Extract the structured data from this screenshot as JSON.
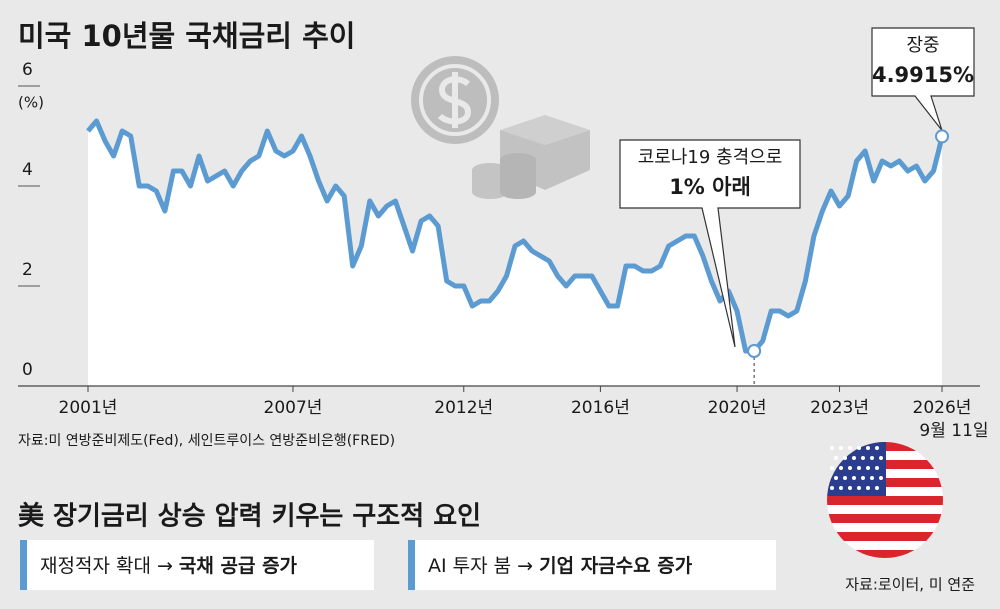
{
  "chart_data": {
    "type": "line",
    "title": "미국 10년물 국채금리 추이",
    "y_unit": "(%)",
    "xlim": [
      2001,
      2026
    ],
    "ylim": [
      0,
      6
    ],
    "yticks": [
      0,
      2,
      4,
      6
    ],
    "xticks": [
      {
        "value": 2001,
        "label": "2001년"
      },
      {
        "value": 2007,
        "label": "2007년"
      },
      {
        "value": 2012,
        "label": "2012년"
      },
      {
        "value": 2016,
        "label": "2016년"
      },
      {
        "value": 2020,
        "label": "2020년"
      },
      {
        "value": 2023,
        "label": "2023년"
      },
      {
        "value": 2026,
        "label": "2026년"
      }
    ],
    "last_date": "9월 11일",
    "x": [
      2001,
      2001.25,
      2001.5,
      2001.75,
      2002,
      2002.25,
      2002.5,
      2002.75,
      2003,
      2003.25,
      2003.5,
      2003.75,
      2004,
      2004.25,
      2004.5,
      2004.75,
      2005,
      2005.25,
      2005.5,
      2005.75,
      2006,
      2006.25,
      2006.5,
      2006.75,
      2007,
      2007.25,
      2007.5,
      2007.75,
      2008,
      2008.25,
      2008.5,
      2008.75,
      2009,
      2009.25,
      2009.5,
      2009.75,
      2010,
      2010.25,
      2010.5,
      2010.75,
      2011,
      2011.25,
      2011.5,
      2011.75,
      2012,
      2012.25,
      2012.5,
      2012.75,
      2013,
      2013.25,
      2013.5,
      2013.75,
      2014,
      2014.25,
      2014.5,
      2014.75,
      2015,
      2015.25,
      2015.5,
      2015.75,
      2016,
      2016.25,
      2016.5,
      2016.75,
      2017,
      2017.25,
      2017.5,
      2017.75,
      2018,
      2018.25,
      2018.5,
      2018.75,
      2019,
      2019.25,
      2019.5,
      2019.75,
      2020,
      2020.25,
      2020.5,
      2020.75,
      2021,
      2021.25,
      2021.5,
      2021.75,
      2022,
      2022.25,
      2022.5,
      2022.75,
      2023,
      2023.25,
      2023.5,
      2023.75,
      2024,
      2024.25,
      2024.5,
      2024.75,
      2025,
      2025.25,
      2025.5,
      2025.75,
      2025.9,
      2026
    ],
    "series": [
      {
        "name": "미국 10년물 국채금리",
        "color": "#5b9bd1",
        "values": [
          5.1,
          5.3,
          4.9,
          4.6,
          5.1,
          5.0,
          4.0,
          4.0,
          3.9,
          3.5,
          4.3,
          4.3,
          4.0,
          4.6,
          4.1,
          4.2,
          4.3,
          4.0,
          4.3,
          4.5,
          4.6,
          5.1,
          4.7,
          4.6,
          4.7,
          5.0,
          4.6,
          4.1,
          3.7,
          4.0,
          3.8,
          2.4,
          2.8,
          3.7,
          3.4,
          3.6,
          3.7,
          3.2,
          2.7,
          3.3,
          3.4,
          3.2,
          2.1,
          2.0,
          2.0,
          1.6,
          1.7,
          1.7,
          1.9,
          2.2,
          2.8,
          2.9,
          2.7,
          2.6,
          2.5,
          2.2,
          2.0,
          2.2,
          2.2,
          2.2,
          1.9,
          1.6,
          1.6,
          2.4,
          2.4,
          2.3,
          2.3,
          2.4,
          2.8,
          2.9,
          3.0,
          3.0,
          2.6,
          2.1,
          1.7,
          1.9,
          1.5,
          0.7,
          0.7,
          0.9,
          1.5,
          1.5,
          1.4,
          1.5,
          2.1,
          3.0,
          3.5,
          3.9,
          3.6,
          3.8,
          4.5,
          4.7,
          4.1,
          4.5,
          4.4,
          4.5,
          4.3,
          4.4,
          4.1,
          4.3,
          4.7,
          4.9915
        ]
      }
    ],
    "annotations": [
      {
        "lines": [
          "코로나19 충격으로",
          "1% 아래"
        ],
        "point": 78
      },
      {
        "lines": [
          "장중",
          "4.9915%"
        ],
        "point": 101
      }
    ],
    "source": "자료:미 연방준비제도(Fed), 세인트루이스 연방준비은행(FRED)"
  },
  "factors": {
    "title": "美 장기금리 상승 압력 키우는 구조적 요인",
    "items": [
      {
        "cause": "재정적자 확대 → ",
        "effect": "국채 공급 증가"
      },
      {
        "cause": "AI 투자 붐 → ",
        "effect": "기업 자금수요 증가"
      }
    ],
    "source": "자료:로이터, 미 연준"
  }
}
